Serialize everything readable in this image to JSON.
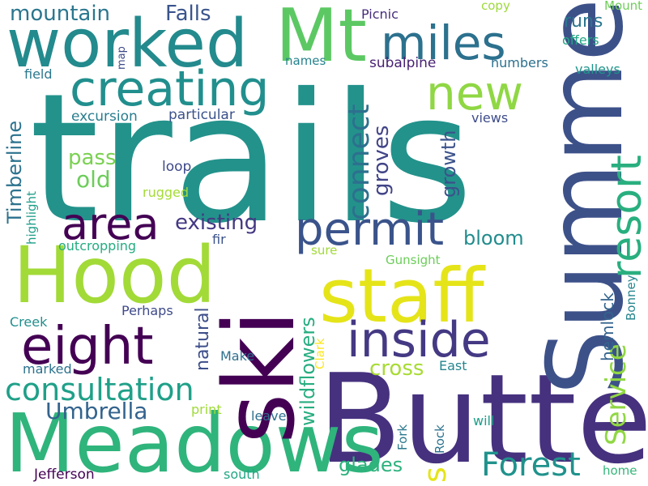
{
  "words": [
    {
      "text": "trails",
      "color": "#23928b",
      "vertical": false
    },
    {
      "text": "Butte",
      "color": "#46317e",
      "vertical": false
    },
    {
      "text": "Summer",
      "color": "#3d5189",
      "vertical": true
    },
    {
      "text": "Meadows",
      "color": "#2fb47c",
      "vertical": false
    },
    {
      "text": "ski",
      "color": "#440154",
      "vertical": true
    },
    {
      "text": "Hood",
      "color": "#a2da37",
      "vertical": false
    },
    {
      "text": "staff",
      "color": "#e5e419",
      "vertical": false
    },
    {
      "text": "Mt",
      "color": "#5cc863",
      "vertical": false
    },
    {
      "text": "worked",
      "color": "#238a8d",
      "vertical": false
    },
    {
      "text": "creating",
      "color": "#218f8d",
      "vertical": false
    },
    {
      "text": "miles",
      "color": "#2c718e",
      "vertical": false
    },
    {
      "text": "resort",
      "color": "#29af7f",
      "vertical": true
    },
    {
      "text": "new",
      "color": "#8fd744",
      "vertical": false
    },
    {
      "text": "area",
      "color": "#440154",
      "vertical": false
    },
    {
      "text": "permit",
      "color": "#3a538b",
      "vertical": false
    },
    {
      "text": "inside",
      "color": "#443983",
      "vertical": false
    },
    {
      "text": "eight",
      "color": "#440154",
      "vertical": false
    },
    {
      "text": "consultation",
      "color": "#1fa088",
      "vertical": false
    },
    {
      "text": "Forest",
      "color": "#20928c",
      "vertical": false
    },
    {
      "text": "Service",
      "color": "#90d743",
      "vertical": true
    },
    {
      "text": "s",
      "color": "#e5e419",
      "vertical": true
    },
    {
      "text": "Umbrella",
      "color": "#33638d",
      "vertical": false
    },
    {
      "text": "connect",
      "color": "#2d708e",
      "vertical": true
    },
    {
      "text": "groves",
      "color": "#414487",
      "vertical": true
    },
    {
      "text": "growth",
      "color": "#3b528b",
      "vertical": true
    },
    {
      "text": "existing",
      "color": "#443983",
      "vertical": false
    },
    {
      "text": "mountain",
      "color": "#2a768e",
      "vertical": false
    },
    {
      "text": "Falls",
      "color": "#3a548c",
      "vertical": false
    },
    {
      "text": "pass",
      "color": "#7ad151",
      "vertical": false
    },
    {
      "text": "old",
      "color": "#6ccd5a",
      "vertical": false
    },
    {
      "text": "runs",
      "color": "#2a768e",
      "vertical": false
    },
    {
      "text": "bloom",
      "color": "#228c8d",
      "vertical": false
    },
    {
      "text": "cross",
      "color": "#a8db34",
      "vertical": false
    },
    {
      "text": "glades",
      "color": "#2db27d",
      "vertical": false
    },
    {
      "text": "Timberline",
      "color": "#2c728e",
      "vertical": true
    },
    {
      "text": "wildflowers",
      "color": "#27ad81",
      "vertical": true
    },
    {
      "text": "natural",
      "color": "#3d4e8a",
      "vertical": true
    },
    {
      "text": "hemlock",
      "color": "#33638d",
      "vertical": true
    },
    {
      "text": "excursion",
      "color": "#287d8e",
      "vertical": false
    },
    {
      "text": "particular",
      "color": "#3b528b",
      "vertical": false
    },
    {
      "text": "subalpine",
      "color": "#482173",
      "vertical": false
    },
    {
      "text": "Picnic",
      "color": "#472d7b",
      "vertical": false
    },
    {
      "text": "copy",
      "color": "#9dd93b",
      "vertical": false
    },
    {
      "text": "Mount",
      "color": "#6ece58",
      "vertical": false
    },
    {
      "text": "offers",
      "color": "#21a685",
      "vertical": false
    },
    {
      "text": "names",
      "color": "#26828e",
      "vertical": false
    },
    {
      "text": "numbers",
      "color": "#2c718e",
      "vertical": false
    },
    {
      "text": "valleys",
      "color": "#1f958b",
      "vertical": false
    },
    {
      "text": "map",
      "color": "#3e4a89",
      "vertical": true
    },
    {
      "text": "field",
      "color": "#2a788e",
      "vertical": false
    },
    {
      "text": "views",
      "color": "#3e4c8a",
      "vertical": false
    },
    {
      "text": "loop",
      "color": "#3e4989",
      "vertical": false
    },
    {
      "text": "highlight",
      "color": "#1f9e89",
      "vertical": true
    },
    {
      "text": "rugged",
      "color": "#a5db36",
      "vertical": false
    },
    {
      "text": "fir",
      "color": "#3b528b",
      "vertical": false
    },
    {
      "text": "outcropping",
      "color": "#25ac82",
      "vertical": false
    },
    {
      "text": "sure",
      "color": "#a2da37",
      "vertical": false
    },
    {
      "text": "Gunsight",
      "color": "#6ccd5a",
      "vertical": false
    },
    {
      "text": "Bonney",
      "color": "#25858e",
      "vertical": true
    },
    {
      "text": "Perhaps",
      "color": "#3e4989",
      "vertical": false
    },
    {
      "text": "Creek",
      "color": "#218f8d",
      "vertical": false
    },
    {
      "text": "Clark",
      "color": "#fde725",
      "vertical": true
    },
    {
      "text": "Make",
      "color": "#2d708e",
      "vertical": false
    },
    {
      "text": "East",
      "color": "#24868e",
      "vertical": false
    },
    {
      "text": "marked",
      "color": "#2c728e",
      "vertical": false
    },
    {
      "text": "print",
      "color": "#a0da39",
      "vertical": false
    },
    {
      "text": "leave",
      "color": "#2d708e",
      "vertical": false
    },
    {
      "text": "Fork",
      "color": "#2a788e",
      "vertical": true
    },
    {
      "text": "Rock",
      "color": "#2c728e",
      "vertical": true
    },
    {
      "text": "will",
      "color": "#1f9e89",
      "vertical": false
    },
    {
      "text": "Jefferson",
      "color": "#440154",
      "vertical": false
    },
    {
      "text": "south",
      "color": "#22a785",
      "vertical": false
    },
    {
      "text": "home",
      "color": "#34b679",
      "vertical": false
    }
  ]
}
